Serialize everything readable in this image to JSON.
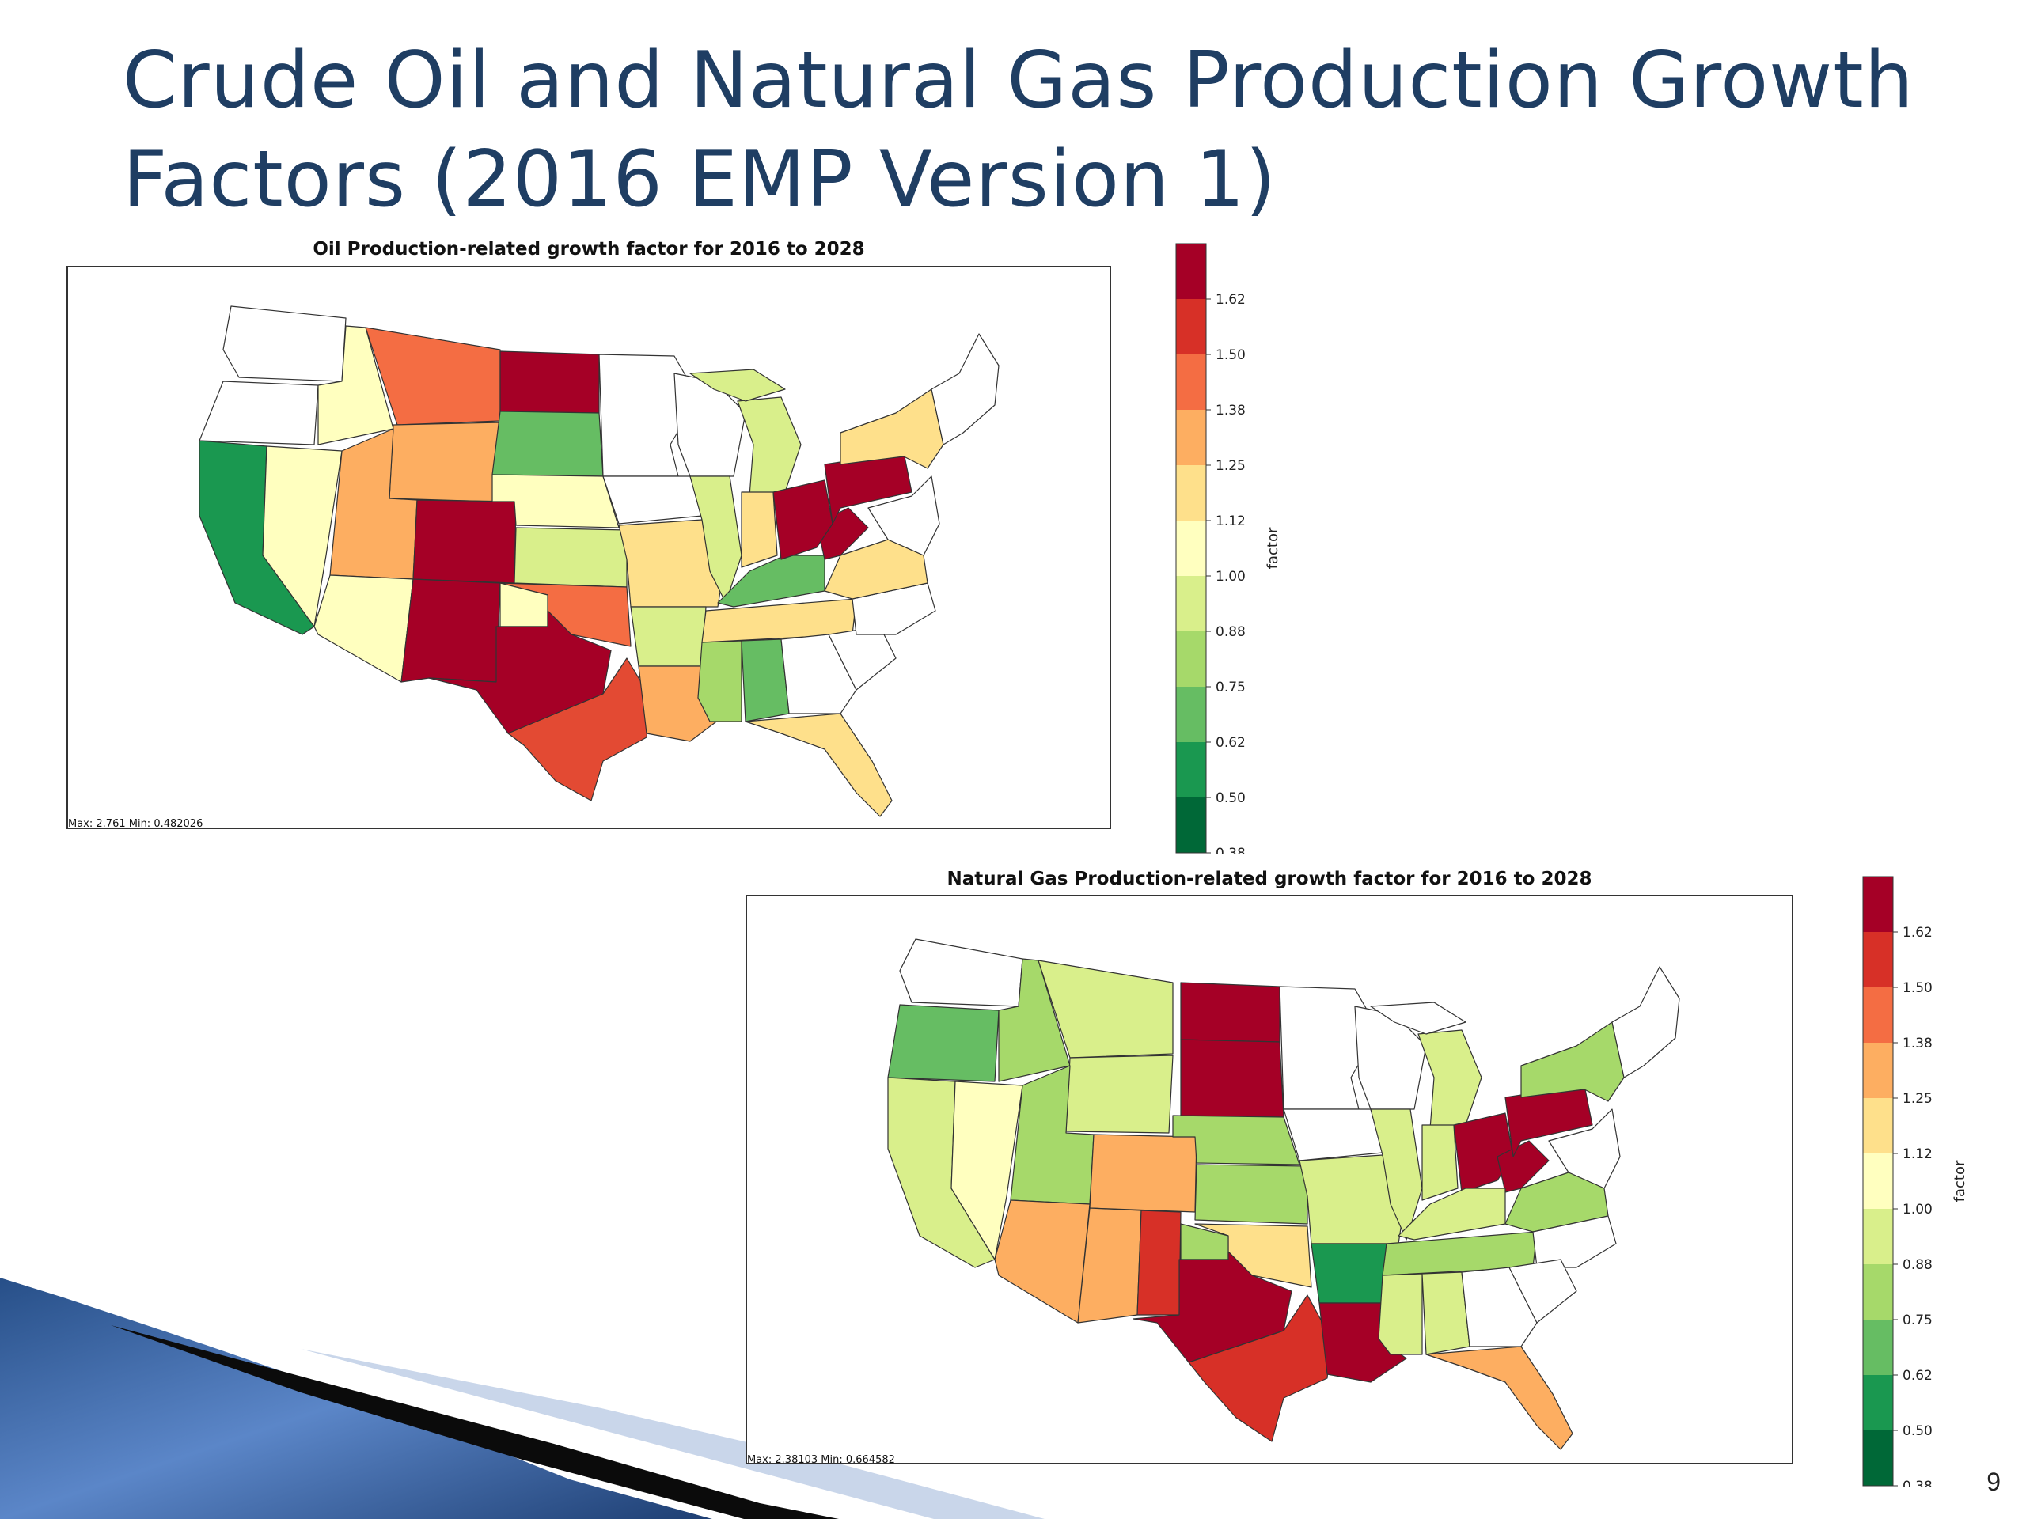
{
  "slide": {
    "title": "Crude Oil and Natural Gas Production Growth Factors (2016 EMP Version 1)",
    "page_number": "9"
  },
  "colorbar": {
    "label": "factor",
    "ticks": [
      "1.62",
      "1.50",
      "1.38",
      "1.25",
      "1.12",
      "1.00",
      "0.88",
      "0.75",
      "0.62",
      "0.50",
      "0.38"
    ],
    "colors_top_to_bottom": [
      "#a50026",
      "#d73027",
      "#f46d43",
      "#fdae61",
      "#fee08b",
      "#ffffbf",
      "#d9ef8b",
      "#a6d96a",
      "#66bd63",
      "#1a9850",
      "#006837"
    ]
  },
  "maps": [
    {
      "title": "Oil Production-related growth factor for 2016 to 2028",
      "maxmin": "Max: 2.761  Min: 0.482026"
    },
    {
      "title": "Natural Gas Production-related growth factor for 2016 to 2028",
      "maxmin": "Max: 2.38103  Min: 0.664582"
    }
  ]
}
